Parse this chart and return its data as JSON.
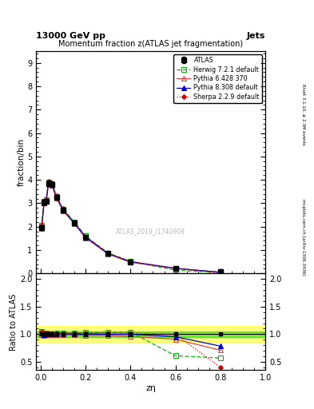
{
  "title_top": "13000 GeV pp",
  "title_right": "Jets",
  "plot_title": "Momentum fraction z(ATLAS jet fragmentation)",
  "xlabel": "zη",
  "ylabel_main": "fraction/bin",
  "ylabel_ratio": "Ratio to ATLAS",
  "watermark": "ATLAS_2019_I1740909",
  "right_label_top": "Rivet 3.1.10, ≥ 2.3M events",
  "right_label_bottom": "mcplots.cern.ch [arXiv:1306.3436]",
  "x_data": [
    0.005,
    0.015,
    0.025,
    0.035,
    0.05,
    0.07,
    0.1,
    0.15,
    0.2,
    0.3,
    0.4,
    0.6,
    0.8
  ],
  "atlas_y": [
    1.95,
    3.05,
    3.1,
    3.85,
    3.8,
    3.25,
    2.7,
    2.15,
    1.55,
    0.85,
    0.5,
    0.23,
    0.07
  ],
  "atlas_yerr": [
    0.08,
    0.1,
    0.1,
    0.12,
    0.1,
    0.1,
    0.08,
    0.08,
    0.06,
    0.04,
    0.03,
    0.02,
    0.01
  ],
  "herwig_y": [
    2.05,
    3.1,
    3.15,
    3.9,
    3.85,
    3.3,
    2.75,
    2.2,
    1.6,
    0.88,
    0.52,
    0.14,
    0.04
  ],
  "pythia6_y": [
    1.92,
    3.0,
    3.08,
    3.82,
    3.78,
    3.22,
    2.68,
    2.12,
    1.52,
    0.83,
    0.48,
    0.21,
    0.05
  ],
  "pythia8_y": [
    2.0,
    3.02,
    3.12,
    3.88,
    3.82,
    3.28,
    2.72,
    2.16,
    1.56,
    0.85,
    0.5,
    0.22,
    0.055
  ],
  "sherpa_y": [
    2.05,
    3.1,
    3.15,
    3.92,
    3.88,
    3.32,
    2.76,
    2.2,
    1.58,
    0.87,
    0.51,
    0.23,
    0.028
  ],
  "herwig_ratio": [
    1.05,
    1.02,
    1.02,
    1.01,
    1.01,
    1.015,
    1.02,
    1.02,
    1.03,
    1.035,
    1.04,
    0.61,
    0.57
  ],
  "pythia6_ratio": [
    0.985,
    0.98,
    0.993,
    0.993,
    0.995,
    0.99,
    0.993,
    0.986,
    0.98,
    0.976,
    0.96,
    0.91,
    0.71
  ],
  "pythia8_ratio": [
    1.025,
    0.99,
    1.006,
    1.008,
    1.005,
    1.009,
    1.007,
    1.005,
    1.006,
    1.0,
    1.0,
    0.955,
    0.785
  ],
  "sherpa_ratio": [
    1.05,
    1.015,
    1.016,
    1.018,
    1.021,
    1.022,
    1.022,
    1.023,
    1.019,
    1.024,
    1.02,
    1.0,
    0.4
  ],
  "band_green": 0.05,
  "band_yellow": 0.15,
  "color_atlas": "#000000",
  "color_herwig": "#00bb00",
  "color_pythia6": "#dd4444",
  "color_pythia8": "#0000cc",
  "color_sherpa": "#cc0000",
  "ylim_main": [
    0,
    9.5
  ],
  "yticks_main": [
    0,
    1,
    2,
    3,
    4,
    5,
    6,
    7,
    8,
    9
  ],
  "ylim_ratio": [
    0.35,
    2.1
  ],
  "yticks_ratio": [
    0.5,
    1.0,
    1.5,
    2.0
  ]
}
